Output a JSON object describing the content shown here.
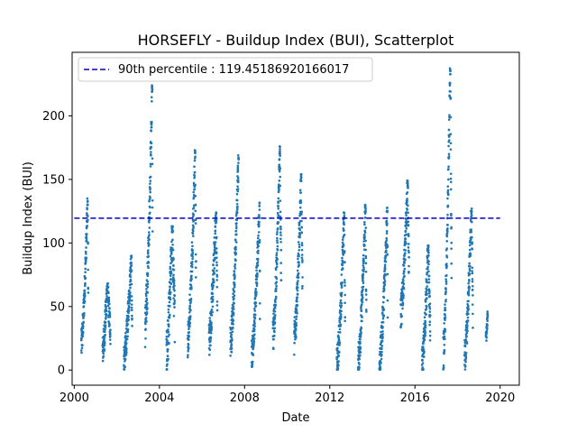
{
  "chart_data": {
    "type": "scatter",
    "title": "HORSEFLY - Buildup Index (BUI), Scatterplot",
    "xlabel": "Date",
    "ylabel": "Buildup Index (BUI)",
    "xlim": [
      1999.9,
      2020.9
    ],
    "ylim": [
      -11.9,
      250
    ],
    "x_ticks": [
      2000,
      2004,
      2008,
      2012,
      2016,
      2020
    ],
    "x_tick_labels": [
      "2000",
      "2004",
      "2008",
      "2012",
      "2016",
      "2020"
    ],
    "y_ticks": [
      0,
      50,
      100,
      150,
      200
    ],
    "y_tick_labels": [
      "0",
      "50",
      "100",
      "150",
      "200"
    ],
    "grid": false,
    "legend_position": "top-left",
    "reference_line": {
      "label": "90th percentile : 119.45186920166017",
      "y": 119.45186920166017,
      "x_range": [
        2000.0,
        2020.0
      ],
      "color": "#0000cc",
      "style": "dashed"
    },
    "point_color": "#1f77b4",
    "series": [
      {
        "seasons": [
          {
            "year": 2000,
            "start": 2000.33,
            "end": 2000.66,
            "start_value": 20,
            "peak_value": 135,
            "peak_at": 2000.63,
            "spread": 12
          },
          {
            "year": 2001,
            "start": 2001.33,
            "end": 2001.7,
            "start_value": 15,
            "peak_value": 68,
            "peak_at": 2001.55,
            "spread": 12
          },
          {
            "year": 2002,
            "start": 2002.33,
            "end": 2002.72,
            "start_value": 8,
            "peak_value": 90,
            "peak_at": 2002.68,
            "spread": 12
          },
          {
            "year": 2003,
            "start": 2003.33,
            "end": 2003.68,
            "start_value": 35,
            "peak_value": 224,
            "peak_at": 2003.66,
            "spread": 18
          },
          {
            "year": 2004,
            "start": 2004.33,
            "end": 2004.72,
            "start_value": 10,
            "peak_value": 113,
            "peak_at": 2004.6,
            "spread": 20
          },
          {
            "year": 2005,
            "start": 2005.33,
            "end": 2005.72,
            "start_value": 25,
            "peak_value": 173,
            "peak_at": 2005.68,
            "spread": 15
          },
          {
            "year": 2006,
            "start": 2006.33,
            "end": 2006.72,
            "start_value": 25,
            "peak_value": 124,
            "peak_at": 2006.66,
            "spread": 15
          },
          {
            "year": 2007,
            "start": 2007.33,
            "end": 2007.72,
            "start_value": 20,
            "peak_value": 169,
            "peak_at": 2007.72,
            "spread": 15
          },
          {
            "year": 2008,
            "start": 2008.33,
            "end": 2008.72,
            "start_value": 12,
            "peak_value": 132,
            "peak_at": 2008.7,
            "spread": 12
          },
          {
            "year": 2009,
            "start": 2009.33,
            "end": 2009.72,
            "start_value": 25,
            "peak_value": 176,
            "peak_at": 2009.66,
            "spread": 15
          },
          {
            "year": 2010,
            "start": 2010.33,
            "end": 2010.72,
            "start_value": 25,
            "peak_value": 154,
            "peak_at": 2010.66,
            "spread": 15
          },
          {
            "year": 2012,
            "start": 2012.33,
            "end": 2012.72,
            "start_value": 4,
            "peak_value": 124,
            "peak_at": 2012.68,
            "spread": 14
          },
          {
            "year": 2013,
            "start": 2013.33,
            "end": 2013.72,
            "start_value": 6,
            "peak_value": 130,
            "peak_at": 2013.68,
            "spread": 14
          },
          {
            "year": 2014,
            "start": 2014.33,
            "end": 2014.72,
            "start_value": 5,
            "peak_value": 128,
            "peak_at": 2014.7,
            "spread": 14
          },
          {
            "year": 2015,
            "start": 2015.33,
            "end": 2015.72,
            "start_value": 45,
            "peak_value": 149,
            "peak_at": 2015.66,
            "spread": 14
          },
          {
            "year": 2016,
            "start": 2016.33,
            "end": 2016.72,
            "start_value": 4,
            "peak_value": 98,
            "peak_at": 2016.62,
            "spread": 14
          },
          {
            "year": 2017,
            "start": 2017.33,
            "end": 2017.72,
            "start_value": 12,
            "peak_value": 238,
            "peak_at": 2017.66,
            "spread": 15
          },
          {
            "year": 2018,
            "start": 2018.33,
            "end": 2018.72,
            "start_value": 10,
            "peak_value": 127,
            "peak_at": 2018.66,
            "spread": 14
          },
          {
            "year": 2019,
            "start": 2019.33,
            "end": 2019.42,
            "start_value": 25,
            "peak_value": 46,
            "peak_at": 2019.42,
            "spread": 5
          }
        ]
      }
    ]
  }
}
